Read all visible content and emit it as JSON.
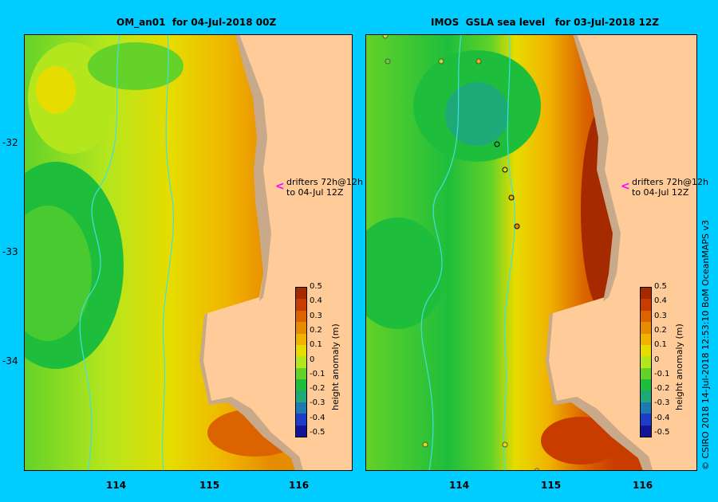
{
  "titles": {
    "left": "OM_an01  for 04-Jul-2018 00Z",
    "right": "IMOS  GSLA sea level   for 03-Jul-2018 12Z"
  },
  "y_ticks": [
    "-32",
    "-33",
    "-34"
  ],
  "x_ticks": [
    "114",
    "115",
    "116"
  ],
  "annotation": {
    "line1": "drifters 72h@12h",
    "line2": "to 04-Jul 12Z",
    "arrow": "<"
  },
  "colorbar": {
    "label": "height anomaly (m)",
    "ticks": [
      "0.5",
      "0.4",
      "0.3",
      "0.2",
      "0.1",
      "0",
      "-0.1",
      "-0.2",
      "-0.3",
      "-0.4",
      "-0.5"
    ],
    "colors": [
      "#a52a00",
      "#c83c00",
      "#dc6400",
      "#e68c00",
      "#f0b400",
      "#e6dc00",
      "#b4e61e",
      "#64d228",
      "#1ebe3c",
      "#1eaa78",
      "#1e78b4",
      "#1e3cc8",
      "#141496"
    ]
  },
  "credit": "© CSIRO 2018   14-Jul-2018 12:53:10 BoM OceanMAPS v3",
  "colors": {
    "background": "#00ccff",
    "land": "#ffcc99",
    "shelf": "#c8a98a",
    "bathymetry": "#40e0e0"
  }
}
